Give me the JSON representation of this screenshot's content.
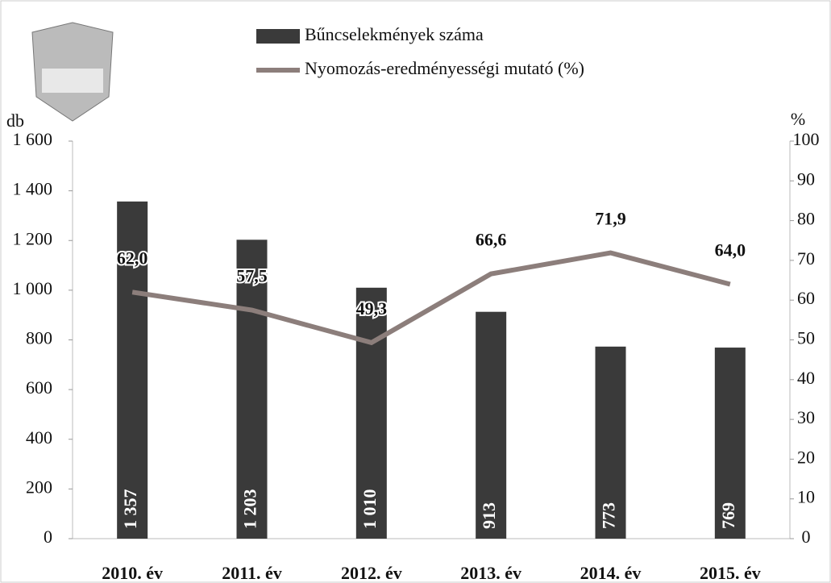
{
  "chart_data": {
    "type": "bar_line",
    "categories": [
      "2010. év",
      "2011. év",
      "2012. év",
      "2013. év",
      "2014. év",
      "2015. év"
    ],
    "y_axis_label": "db",
    "y2_axis_label": "%",
    "ylim": [
      0,
      1600
    ],
    "yticks": [
      0,
      200,
      400,
      600,
      800,
      {
        "value": 1000,
        "label": "1 000"
      },
      {
        "value": 1200,
        "label": "1 200"
      },
      {
        "value": 1400,
        "label": "1 400"
      },
      {
        "value": 1600,
        "label": "1 600"
      }
    ],
    "y2lim": [
      0,
      100
    ],
    "y2ticks": [
      0,
      10,
      20,
      30,
      40,
      50,
      60,
      70,
      80,
      90,
      100
    ],
    "legend": "top",
    "series": [
      {
        "name": "Bűncselekmények száma",
        "type": "bar",
        "color": "#3a3a3a",
        "values": [
          1357,
          1203,
          1010,
          913,
          773,
          769
        ],
        "value_labels": [
          "1 357",
          "1 203",
          "1 010",
          "913",
          "773",
          "769"
        ]
      },
      {
        "name": "Nyomozás-eredményességi mutató (%)",
        "type": "line",
        "axis": "y2",
        "color": "#8c7e7b",
        "values": [
          62.0,
          57.5,
          49.3,
          66.6,
          71.9,
          64.0
        ],
        "value_labels": [
          "62,0",
          "57,5",
          "49,3",
          "66,6",
          "71,9",
          "64,0"
        ]
      }
    ]
  }
}
